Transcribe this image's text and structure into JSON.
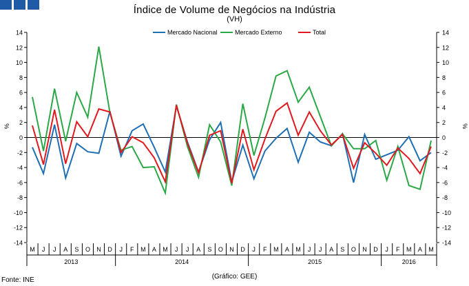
{
  "header": {
    "title": "Índice de Volume de Negócios na Indústria",
    "subtitle": "(VH)",
    "source": "Fonte: INE",
    "credit": "(Gráfico: GEE)"
  },
  "colors": {
    "nacional": "#1f6fb4",
    "externo": "#2aa845",
    "total": "#e0191e",
    "logo": "#1f5aa6"
  },
  "chart_data": {
    "type": "line",
    "ylabel_left": "%",
    "ylabel_right": "%",
    "ylim": [
      -14,
      14
    ],
    "yticks": [
      14,
      12,
      10,
      8,
      6,
      4,
      2,
      0,
      -2,
      -4,
      -6,
      -8,
      -10,
      -12,
      -14
    ],
    "months": [
      "M",
      "J",
      "J",
      "A",
      "S",
      "O",
      "N",
      "D",
      "J",
      "F",
      "M",
      "A",
      "M",
      "J",
      "J",
      "A",
      "S",
      "O",
      "N",
      "D",
      "J",
      "F",
      "M",
      "A",
      "M",
      "J",
      "J",
      "A",
      "S",
      "O",
      "N",
      "D",
      "J",
      "F",
      "M",
      "A",
      "M"
    ],
    "years": [
      {
        "label": "2013",
        "start": 0,
        "end": 8
      },
      {
        "label": "2014",
        "start": 8,
        "end": 20
      },
      {
        "label": "2015",
        "start": 20,
        "end": 32
      },
      {
        "label": "2016",
        "start": 32,
        "end": 37
      }
    ],
    "legend": [
      "Mercado Nacional",
      "Mercado Externo",
      "Total"
    ],
    "series": [
      {
        "name": "Mercado Nacional",
        "color_key": "nacional",
        "values": [
          -1.3,
          -4.8,
          1.7,
          -5.4,
          -0.8,
          -1.9,
          -2.1,
          3.5,
          -2.5,
          0.9,
          1.8,
          -1.3,
          -4.6,
          4.2,
          -0.6,
          -4.6,
          -0.3,
          2.0,
          -5.9,
          -1.0,
          -5.5,
          -1.8,
          -0.1,
          1.2,
          -3.3,
          0.7,
          -0.6,
          -1.1,
          0.5,
          -6.0,
          0.4,
          -2.9,
          -2.3,
          -1.7,
          0.1,
          -3.1,
          -2.0
        ]
      },
      {
        "name": "Mercado Externo",
        "color_key": "externo",
        "values": [
          5.4,
          -1.8,
          6.5,
          -0.5,
          6.0,
          2.7,
          12.1,
          3.3,
          -1.7,
          -1.2,
          -4.0,
          -3.9,
          -7.4,
          4.4,
          -1.2,
          -5.3,
          1.7,
          -0.6,
          -6.4,
          4.5,
          -2.4,
          2.6,
          8.2,
          8.9,
          4.7,
          6.7,
          2.8,
          -1.1,
          0.5,
          -1.5,
          -1.5,
          -0.4,
          -5.7,
          -1.2,
          -6.4,
          -6.9,
          -0.4
        ]
      },
      {
        "name": "Total",
        "color_key": "total",
        "values": [
          1.6,
          -3.6,
          3.7,
          -3.5,
          2.1,
          0.1,
          3.8,
          3.4,
          -2.0,
          0.1,
          -0.7,
          -2.7,
          -5.9,
          4.3,
          -0.8,
          -4.7,
          0.3,
          0.9,
          -6.1,
          1.1,
          -4.3,
          -0.2,
          3.5,
          4.6,
          0.3,
          3.4,
          0.9,
          -1.0,
          0.4,
          -4.1,
          -0.7,
          -2.1,
          -3.7,
          -1.4,
          -2.8,
          -4.8,
          -1.2
        ]
      }
    ]
  }
}
